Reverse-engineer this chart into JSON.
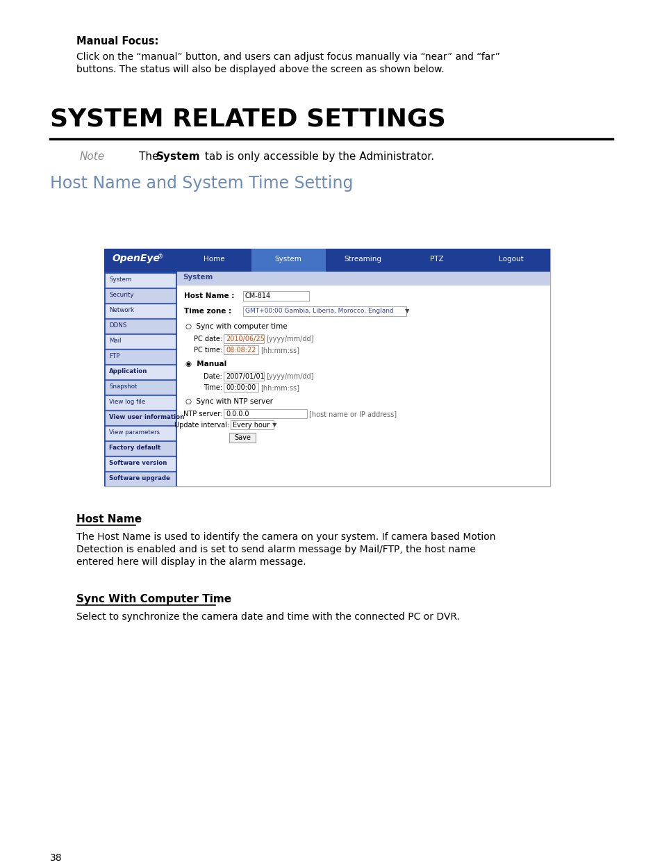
{
  "bg_color": "#ffffff",
  "manual_focus_label": "Manual Focus:",
  "manual_focus_line1": "Click on the “manual” button, and users can adjust focus manually via “near” and “far”",
  "manual_focus_line2": "buttons. The status will also be displayed above the screen as shown below.",
  "section_title": "SYSTEM RELATED SETTINGS",
  "note_label": "Note",
  "subsection_title": "Host Name and System Time Setting",
  "nav_items": [
    "Home",
    "System",
    "Streaming",
    "PTZ",
    "Logout"
  ],
  "nav_active": "System",
  "sidebar_items": [
    "System",
    "Security",
    "Network",
    "DDNS",
    "Mail",
    "FTP",
    "Application",
    "Snapshot",
    "View log file",
    "View user information",
    "View parameters",
    "Factory default",
    "Software version",
    "Software upgrade"
  ],
  "ui_section_label": "System",
  "host_name_label": "Host Name :",
  "host_name_value": "CM-814",
  "time_zone_label": "Time zone :",
  "time_zone_value": "GMT+00:00 Gambia, Liberia, Morocco, England",
  "sync_computer_label": "Sync with computer time",
  "pc_date_label": "PC date:",
  "pc_date_value": "2010/06/25",
  "pc_date_hint": "[yyyy/mm/dd]",
  "pc_time_label": "PC time:",
  "pc_time_value": "08:08:22",
  "pc_time_hint": "[hh:mm:ss]",
  "manual_label": "Manual",
  "date_label": "Date:",
  "date_value": "2007/01/01",
  "date_hint": "[yyyy/mm/dd]",
  "time_label": "Time:",
  "time_value": "00:00:00",
  "time_hint": "[hh:mm:ss]",
  "sync_ntp_label": "Sync with NTP server",
  "ntp_server_label": "NTP server:",
  "ntp_server_value": "0.0.0.0",
  "ntp_server_hint": "[host name or IP address]",
  "update_interval_label": "Update interval:",
  "update_interval_value": "Every hour",
  "save_button": "Save",
  "host_name_section": "Host Name",
  "host_name_desc_line1": "The Host Name is used to identify the camera on your system. If camera based Motion",
  "host_name_desc_line2": "Detection is enabled and is set to send alarm message by Mail/FTP, the host name",
  "host_name_desc_line3": "entered here will display in the alarm message.",
  "sync_computer_section": "Sync With Computer Time",
  "sync_computer_desc": "Select to synchronize the camera date and time with the connected PC or DVR.",
  "page_number": "38",
  "nav_bg": "#1e3e96",
  "nav_active_bg": "#4472c4",
  "sidebar_bg": "#2b4faf",
  "openeye_bg": "#1e3e96",
  "ui_header_bg": "#c5cfe8",
  "subsection_title_color": "#6d8bb8",
  "note_color": "#8a8a8a"
}
